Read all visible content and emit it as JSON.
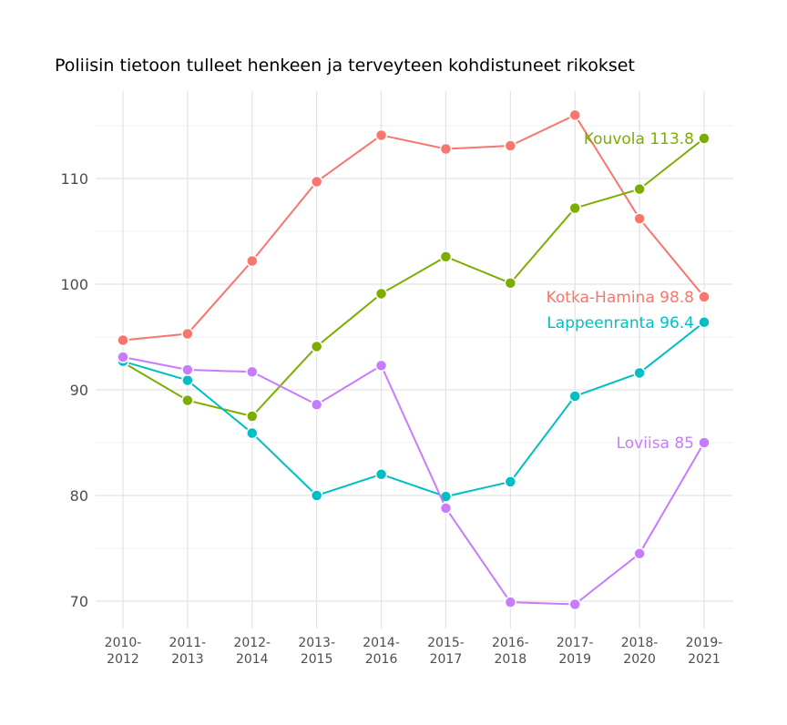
{
  "chart_data": {
    "type": "line",
    "title": "Poliisin tietoon tulleet henkeen ja terveyteen kohdistuneet rikokset",
    "xlabel": "",
    "ylabel": "",
    "categories": [
      "2010-\n2012",
      "2011-\n2013",
      "2012-\n2014",
      "2013-\n2015",
      "2014-\n2016",
      "2015-\n2017",
      "2016-\n2018",
      "2017-\n2019",
      "2018-\n2020",
      "2019-\n2021"
    ],
    "yticks": [
      70,
      80,
      90,
      100,
      110
    ],
    "ylim": [
      67.5,
      118.5
    ],
    "grid": true,
    "legend": "direct labels at line ends",
    "series": [
      {
        "name": "Kotka-Hamina",
        "label": "Kotka-Hamina 98.8",
        "color": "#F8766D",
        "values": [
          94.7,
          95.3,
          102.2,
          109.7,
          114.1,
          112.8,
          113.1,
          116.0,
          106.2,
          98.8
        ]
      },
      {
        "name": "Kouvola",
        "label": "Kouvola 113.8",
        "color": "#7CAE00",
        "values": [
          92.6,
          89.0,
          87.5,
          94.1,
          99.1,
          102.6,
          100.1,
          107.2,
          109.0,
          113.8
        ]
      },
      {
        "name": "Lappeenranta",
        "label": "Lappeenranta 96.4",
        "color": "#00BFC4",
        "values": [
          92.7,
          90.9,
          85.9,
          80.0,
          82.0,
          79.9,
          81.3,
          89.4,
          91.6,
          96.4
        ]
      },
      {
        "name": "Loviisa",
        "label": "Loviisa 85",
        "color": "#C77CFF",
        "values": [
          93.1,
          91.9,
          91.7,
          88.6,
          92.3,
          78.8,
          69.9,
          69.7,
          74.5,
          85.0
        ]
      }
    ]
  }
}
